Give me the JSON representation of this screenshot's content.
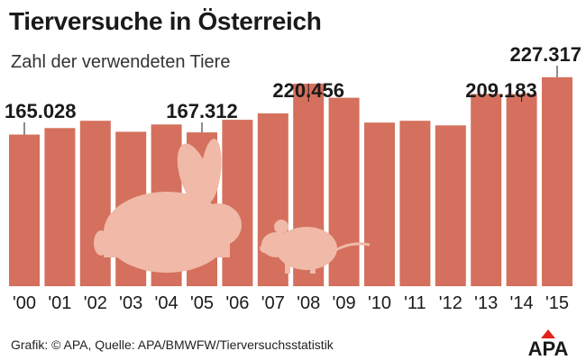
{
  "title": "Tierversuche in Österreich",
  "subtitle": "Zahl der verwendeten Tiere",
  "source": "Grafik: © APA, Quelle: APA/BMWFW/Tierversuchsstatistik",
  "logo": "APA",
  "colors": {
    "bar": "#d4705d",
    "silhouette": "#f0b9a8",
    "text": "#1a1a1a"
  },
  "icons": [
    "rabbit-silhouette-icon",
    "mouse-silhouette-icon"
  ],
  "chart_data": {
    "type": "bar",
    "categories": [
      "'00",
      "'01",
      "'02",
      "'03",
      "'04",
      "'05",
      "'06",
      "'07",
      "'08",
      "'09",
      "'10",
      "'11",
      "'12",
      "'13",
      "'14",
      "'15"
    ],
    "values": [
      165028,
      172000,
      180000,
      168000,
      176000,
      167312,
      181000,
      188000,
      220456,
      205000,
      178000,
      180000,
      175000,
      209183,
      209183,
      227317
    ],
    "labels": [
      "165.028",
      null,
      null,
      null,
      null,
      "167.312",
      null,
      null,
      "220.456",
      null,
      null,
      null,
      null,
      "209.183",
      null,
      "227.317"
    ],
    "title": "Tierversuche in Österreich",
    "subtitle": "Zahl der verwendeten Tiere",
    "xlabel": "",
    "ylabel": "",
    "ylim": [
      0,
      235000
    ],
    "grid": false,
    "legend": "none"
  }
}
